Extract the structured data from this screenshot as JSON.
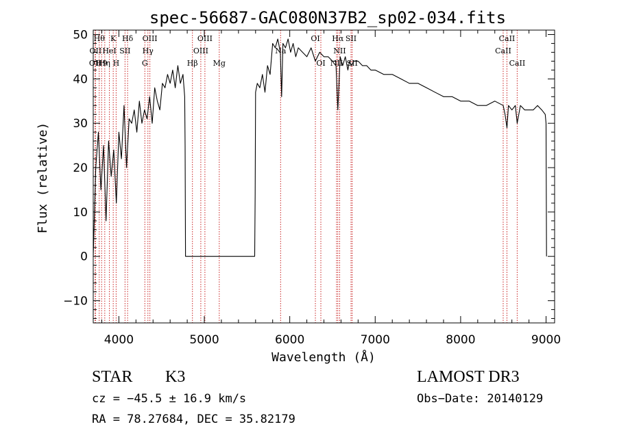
{
  "title": "spec-56687-GAC080N37B2_sp02-034.fits",
  "chart_data": {
    "type": "line",
    "xlabel": "Wavelength (Å)",
    "ylabel": "Flux (relative)",
    "xlim": [
      3700,
      9100
    ],
    "ylim": [
      -15,
      51
    ],
    "xticks": [
      4000,
      5000,
      6000,
      7000,
      8000,
      9000
    ],
    "yticks": [
      -10,
      0,
      10,
      20,
      30,
      40,
      50
    ],
    "x_minor_step": 200,
    "y_minor_step": 2,
    "grid": false,
    "series": [
      {
        "x": [
          3700,
          3730,
          3760,
          3790,
          3820,
          3850,
          3880,
          3910,
          3940,
          3970,
          4000,
          4030,
          4060,
          4090,
          4120,
          4150,
          4180,
          4210,
          4240,
          4270,
          4300,
          4330,
          4360,
          4390,
          4420,
          4450,
          4480,
          4510,
          4540,
          4570,
          4600,
          4630,
          4660,
          4690,
          4720,
          4750,
          4770,
          4775,
          4780,
          4800,
          5000,
          5300,
          5590,
          5595,
          5600,
          5620,
          5650,
          5680,
          5710,
          5740,
          5770,
          5800,
          5830,
          5860,
          5890,
          5905,
          5920,
          5950,
          5980,
          6010,
          6040,
          6070,
          6100,
          6150,
          6200,
          6250,
          6300,
          6350,
          6400,
          6450,
          6500,
          6540,
          6563,
          6590,
          6620,
          6650,
          6680,
          6700,
          6720,
          6750,
          6800,
          6850,
          6900,
          6950,
          7000,
          7100,
          7200,
          7300,
          7400,
          7500,
          7600,
          7700,
          7800,
          7900,
          8000,
          8100,
          8200,
          8300,
          8400,
          8498,
          8520,
          8542,
          8560,
          8600,
          8640,
          8662,
          8700,
          8750,
          8800,
          8850,
          8900,
          8950,
          8990,
          9000,
          9005
        ],
        "y": [
          0,
          20,
          28,
          15,
          25,
          8,
          26,
          18,
          24,
          12,
          28,
          22,
          34,
          20,
          31,
          30,
          33,
          28,
          35,
          30,
          33,
          31,
          36,
          30,
          38,
          35,
          33,
          39,
          38,
          41,
          39,
          42,
          38,
          43,
          39,
          41,
          36,
          25,
          0,
          0,
          0,
          0,
          0,
          14,
          37,
          39,
          38,
          41,
          37,
          43,
          41,
          48,
          47,
          49,
          46,
          36,
          48,
          47,
          49,
          46,
          48,
          45,
          47,
          46,
          45,
          47,
          44,
          46,
          45,
          45,
          44,
          44,
          33,
          45,
          43,
          45,
          42,
          44,
          43,
          44,
          44,
          43,
          43,
          42,
          42,
          41,
          41,
          40,
          39,
          39,
          38,
          37,
          36,
          36,
          35,
          35,
          34,
          34,
          35,
          34,
          32,
          29,
          34,
          33,
          34,
          30,
          34,
          33,
          33,
          33,
          34,
          33,
          32,
          30,
          0
        ]
      }
    ],
    "spectral_lines": [
      {
        "x": 3722,
        "label": "OII",
        "row": 2
      },
      {
        "x": 3727,
        "label": "OII",
        "row": 1
      },
      {
        "x": 3770,
        "label": "Hθ",
        "row": 0
      },
      {
        "x": 3798,
        "label": "H9",
        "row": 2
      },
      {
        "x": 3835,
        "label": "Hη",
        "row": 2
      },
      {
        "x": 3889,
        "label": "HeI",
        "row": 1
      },
      {
        "x": 3934,
        "label": "K",
        "row": 0
      },
      {
        "x": 3968,
        "label": "H",
        "row": 2
      },
      {
        "x": 4072,
        "label": "SII",
        "row": 1
      },
      {
        "x": 4102,
        "label": "Hδ",
        "row": 0
      },
      {
        "x": 4304,
        "label": "G",
        "row": 2
      },
      {
        "x": 4340,
        "label": "Hγ",
        "row": 1
      },
      {
        "x": 4363,
        "label": "OIII",
        "row": 0
      },
      {
        "x": 4861,
        "label": "Hβ",
        "row": 2
      },
      {
        "x": 4959,
        "label": "OIII",
        "row": 1
      },
      {
        "x": 5007,
        "label": "OIII",
        "row": 0
      },
      {
        "x": 5175,
        "label": "Mg",
        "row": 2
      },
      {
        "x": 5893,
        "label": "Na",
        "row": 1
      },
      {
        "x": 6300,
        "label": "OI",
        "row": 0
      },
      {
        "x": 6364,
        "label": "OI",
        "row": 2
      },
      {
        "x": 6548,
        "label": "NII",
        "row": 2
      },
      {
        "x": 6563,
        "label": "Hα",
        "row": 0
      },
      {
        "x": 6584,
        "label": "NII",
        "row": 1
      },
      {
        "x": 6717,
        "label": "SII",
        "row": 0
      },
      {
        "x": 6731,
        "label": "SII",
        "row": 2
      },
      {
        "x": 8498,
        "label": "CaII",
        "row": 1
      },
      {
        "x": 8542,
        "label": "CaII",
        "row": 0
      },
      {
        "x": 8662,
        "label": "CaII",
        "row": 2
      }
    ]
  },
  "info": {
    "class": "STAR",
    "subclass": "K3",
    "survey": "LAMOST DR3",
    "cz": "cz = −45.5 ± 16.9 km/s",
    "obs_date": "Obs−Date: 20140129",
    "coords": "RA =  78.27684, DEC =  35.82179"
  }
}
